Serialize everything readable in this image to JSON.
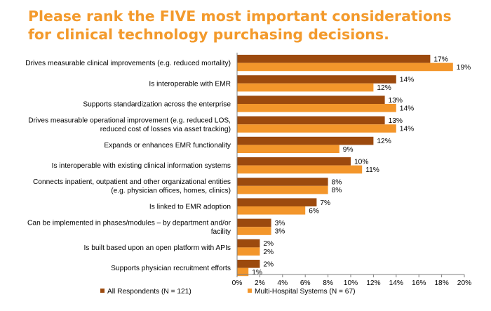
{
  "chart_data": {
    "type": "bar",
    "orientation": "horizontal",
    "title_lines": [
      "Please rank the FIVE most important considerations",
      "for clinical technology purchasing decisions."
    ],
    "categories": [
      [
        "Drives measurable clinical improvements (e.g. reduced mortality)"
      ],
      [
        "Is interoperable with EMR"
      ],
      [
        "Supports standardization across the enterprise"
      ],
      [
        "Drives measurable operational improvement (e.g. reduced LOS,",
        "reduced cost of losses via asset tracking)"
      ],
      [
        "Expands or enhances EMR functionality"
      ],
      [
        "Is interoperable with existing clinical information systems"
      ],
      [
        "Connects inpatient, outpatient and other organizational entities",
        "(e.g. physician offices, homes, clinics)"
      ],
      [
        "Is linked to EMR adoption"
      ],
      [
        "Can be implemented in phases/modules – by department and/or",
        "facility"
      ],
      [
        "Is built based upon an open platform with APIs"
      ],
      [
        "Supports physician recruitment efforts"
      ]
    ],
    "series": [
      {
        "name": "All Respondents (N = 121)",
        "color": "#9c4a0e",
        "values": [
          17,
          14,
          13,
          13,
          12,
          10,
          8,
          7,
          3,
          2,
          2
        ],
        "labels": [
          "17%",
          "14%",
          "13%",
          "13%",
          "12%",
          "10%",
          "8%",
          "7%",
          "3%",
          "2%",
          "2%"
        ]
      },
      {
        "name": "Multi-Hospital Systems (N = 67)",
        "color": "#f3962b",
        "values": [
          19,
          12,
          14,
          14,
          9,
          11,
          8,
          6,
          3,
          2,
          1
        ],
        "labels": [
          "19%",
          "12%",
          "14%",
          "14%",
          "9%",
          "11%",
          "8%",
          "6%",
          "3%",
          "2%",
          "1%"
        ]
      }
    ],
    "xlim": [
      0,
      20
    ],
    "xticks": [
      0,
      2,
      4,
      6,
      8,
      10,
      12,
      14,
      16,
      18,
      20
    ],
    "xtick_labels": [
      "0%",
      "2%",
      "4%",
      "6%",
      "8%",
      "10%",
      "12%",
      "14%",
      "16%",
      "18%",
      "20%"
    ],
    "grid": false,
    "legend_position": "bottom"
  }
}
